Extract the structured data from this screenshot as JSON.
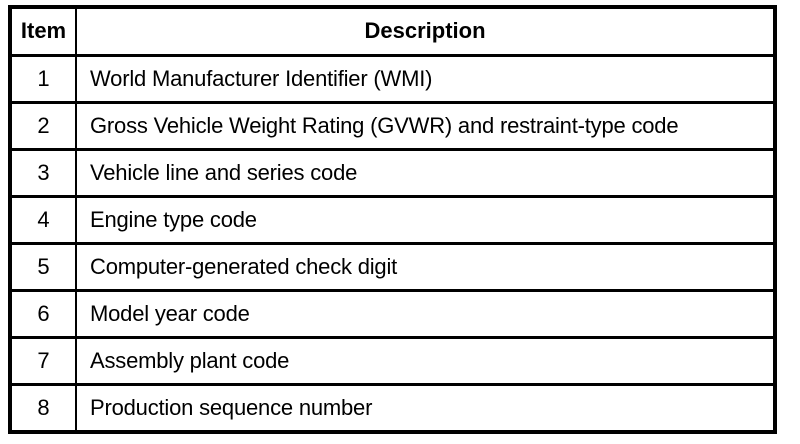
{
  "table": {
    "headers": {
      "item": "Item",
      "description": "Description"
    },
    "rows": [
      {
        "item": "1",
        "description": "World Manufacturer Identifier (WMI)"
      },
      {
        "item": "2",
        "description": "Gross Vehicle Weight Rating (GVWR) and restraint-type code"
      },
      {
        "item": "3",
        "description": "Vehicle line and series code"
      },
      {
        "item": "4",
        "description": "Engine type code"
      },
      {
        "item": "5",
        "description": "Computer-generated check digit"
      },
      {
        "item": "6",
        "description": "Model year code"
      },
      {
        "item": "7",
        "description": "Assembly plant code"
      },
      {
        "item": "8",
        "description": "Production sequence number"
      }
    ],
    "colors": {
      "border": "#000000",
      "text": "#000000",
      "background": "#ffffff"
    }
  }
}
